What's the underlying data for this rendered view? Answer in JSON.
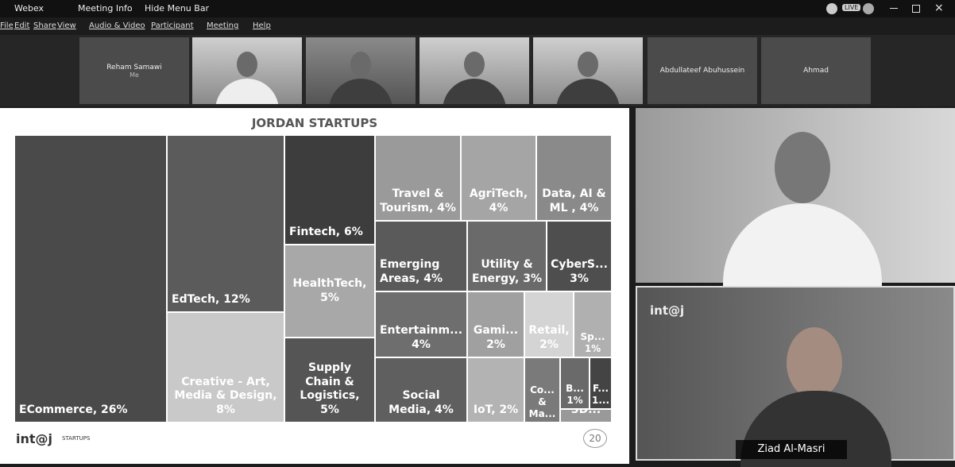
{
  "title_bar": {
    "app": "Webex",
    "meeting_info": "Meeting Info",
    "hide_menu": "Hide Menu Bar",
    "live": "LIVE"
  },
  "menu": [
    "File",
    "Edit",
    "Share",
    "View",
    "Audio & Video",
    "Participant",
    "Meeting",
    "Help"
  ],
  "participants": [
    {
      "name": "Reham Samawi",
      "subtitle": "Me"
    },
    {
      "name": "Abdullateef Abuhussein"
    },
    {
      "name": "Ahmad"
    }
  ],
  "slide": {
    "title": "JORDAN STARTUPS",
    "tiles": [
      "ECommerce, 26%",
      "EdTech, 12%",
      "Creative  - Art, Media & Design, 8%",
      "Fintech, 6%",
      "HealthTech, 5%",
      "Supply Chain & Logistics, 5%",
      "Travel & Tourism, 4%",
      "AgriTech, 4%",
      "Data, AI & ML , 4%",
      "Emerging Areas, 4%",
      "Utility & Energy, 3%",
      "CyberS... 3%",
      "Entertainm... 4%",
      "Gami... 2%",
      "Retail, 2%",
      "Sp... 1%",
      "Social Media, 4%",
      "IoT, 2%",
      "Co... & Ma...",
      "B... 1%",
      "F... 1...",
      "3D..."
    ],
    "logo": "int@j",
    "logo_sub": "STARTUPS",
    "badge": "20"
  },
  "videos": [
    {
      "logo": "int@j",
      "name": "Ziad Al-Masri"
    }
  ]
}
